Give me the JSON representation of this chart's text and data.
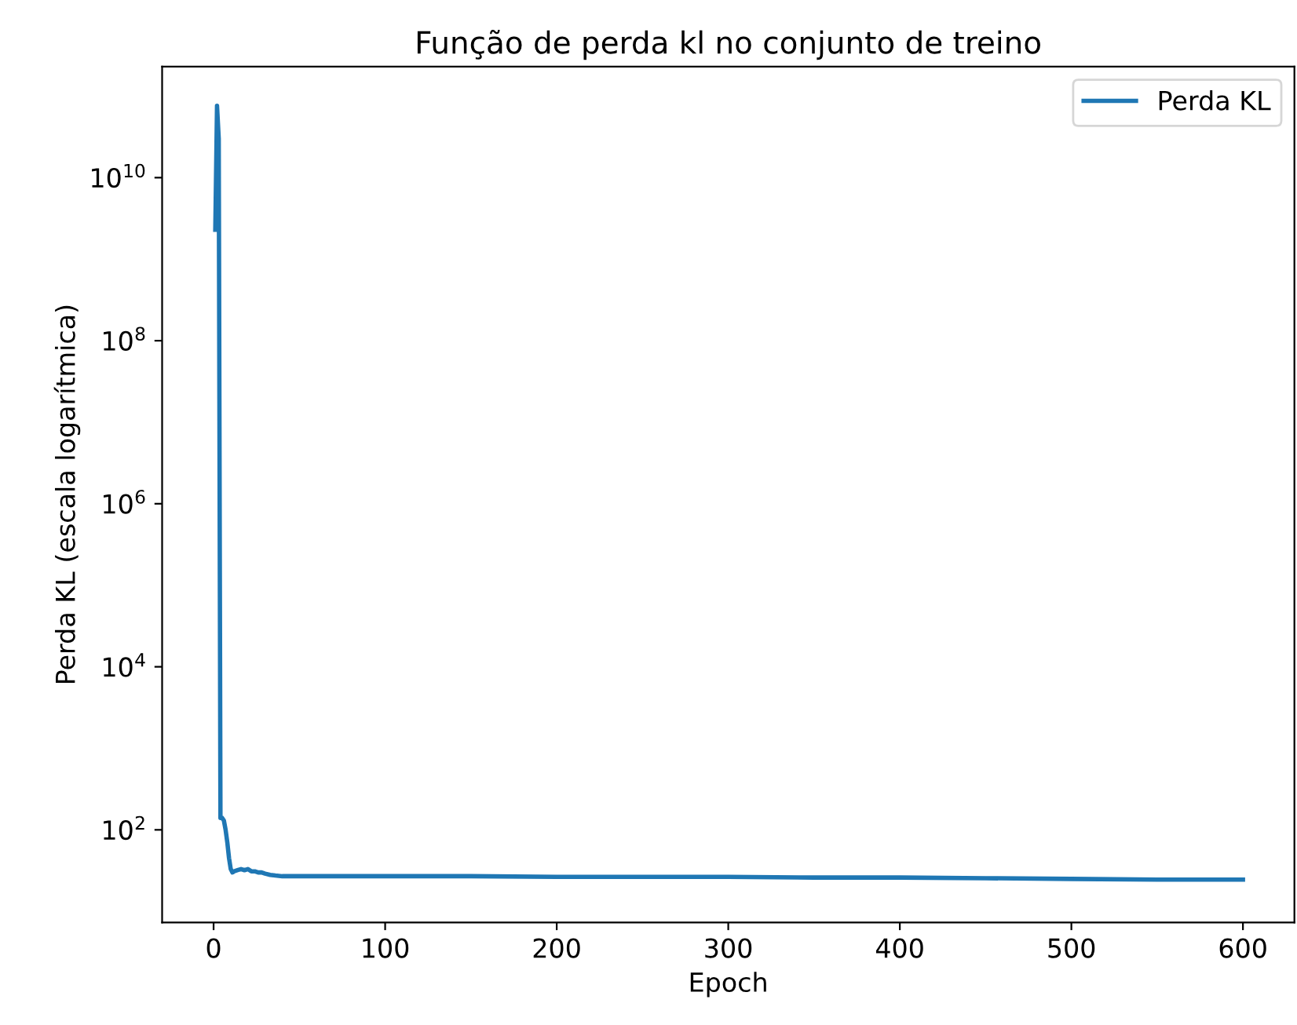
{
  "chart_data": {
    "type": "line",
    "title": "Função de perda kl no conjunto de treino",
    "xlabel": "Epoch",
    "ylabel": "Perda KL (escala logarítmica)",
    "series": [
      {
        "name": "Perda KL",
        "color": "#1f77b4",
        "x": [
          1,
          2,
          3,
          4,
          5,
          6,
          7,
          8,
          9,
          10,
          11,
          12,
          14,
          16,
          18,
          20,
          22,
          24,
          26,
          28,
          30,
          33,
          36,
          40,
          45,
          50,
          60,
          80,
          100,
          150,
          200,
          250,
          300,
          350,
          400,
          450,
          500,
          550,
          580,
          600
        ],
        "values": [
          2300000000,
          76000000000,
          30000000000,
          140,
          140,
          130,
          100,
          70,
          45,
          33,
          30,
          31,
          32,
          33,
          32,
          33,
          31,
          31,
          30,
          30,
          29,
          28,
          27.5,
          27,
          27,
          27,
          27,
          27,
          27,
          27,
          26.5,
          26.5,
          26.5,
          26,
          26,
          25.5,
          25,
          24.5,
          24.5,
          24.5
        ]
      }
    ],
    "log": "y",
    "xlim": [
      -30,
      630
    ],
    "ylim": [
      7.3,
      230000000000.0
    ],
    "xticks": [
      0,
      100,
      200,
      300,
      400,
      500,
      600
    ],
    "yticks": [
      {
        "value": 100,
        "label": "10$^{2}$"
      },
      {
        "value": 10000,
        "label": "10$^{4}$"
      },
      {
        "value": 1000000,
        "label": "10$^{6}$"
      },
      {
        "value": 100000000,
        "label": "10$^{8}$"
      },
      {
        "value": 10000000000,
        "label": "10$^{10}$"
      }
    ],
    "legend": "top right",
    "grid": false
  }
}
